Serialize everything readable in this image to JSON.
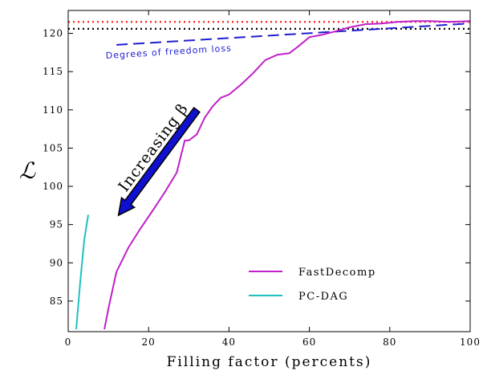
{
  "chart_data": {
    "type": "line",
    "title": "",
    "xlabel": "Filling factor (percents)",
    "ylabel": "ℒ",
    "xlim": [
      0,
      100
    ],
    "ylim": [
      81,
      123
    ],
    "xticks": [
      0,
      20,
      40,
      60,
      80,
      100
    ],
    "yticks": [
      85,
      90,
      95,
      100,
      105,
      110,
      115,
      120
    ],
    "grid": false,
    "legend_position": "lower-right",
    "reference_lines": [
      {
        "y": 121.5,
        "color": "#ff2020",
        "style": "dotted"
      },
      {
        "y": 120.6,
        "color": "#000000",
        "style": "dotted"
      }
    ],
    "series": [
      {
        "name": "FastDecomp",
        "color": "#c020c8",
        "x": [
          9,
          10,
          12,
          15,
          18,
          21,
          24,
          27,
          29,
          30,
          32,
          34,
          36,
          38,
          40,
          43,
          46,
          49,
          52,
          55,
          57,
          60,
          63,
          66,
          70,
          74,
          78,
          82,
          86,
          90,
          95,
          100
        ],
        "y": [
          81.3,
          84,
          88.8,
          92,
          94.5,
          96.8,
          99.2,
          101.8,
          106,
          106,
          106.8,
          109,
          110.5,
          111.6,
          112,
          113.3,
          114.8,
          116.5,
          117.2,
          117.4,
          118.2,
          119.5,
          119.8,
          120.2,
          120.8,
          121.2,
          121.3,
          121.5,
          121.6,
          121.6,
          121.5,
          121.6
        ]
      },
      {
        "name": "PC-DAG",
        "color": "#20c0c0",
        "x": [
          2,
          3,
          4,
          5
        ],
        "y": [
          81.3,
          87.5,
          93,
          96.3
        ]
      }
    ],
    "annotations": {
      "dof_text": "Degrees of freedom loss",
      "dof_line": {
        "x": [
          12,
          100
        ],
        "y": [
          118.5,
          121.3
        ],
        "color": "#1f1fd0"
      },
      "arrow_text": "Increasing β",
      "arrow": {
        "x_start": 32,
        "y_start": 110,
        "x_end": 12.5,
        "y_end": 96.2,
        "color": "#1010d0"
      }
    }
  }
}
